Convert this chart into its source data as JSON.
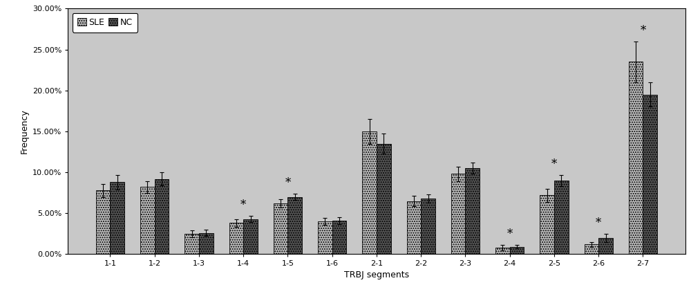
{
  "categories": [
    "1-1",
    "1-2",
    "1-3",
    "1-4",
    "1-5",
    "1-6",
    "2-1",
    "2-2",
    "2-3",
    "2-4",
    "2-5",
    "2-6",
    "2-7"
  ],
  "sle_values": [
    7.8,
    8.2,
    2.5,
    3.8,
    6.2,
    4.0,
    15.0,
    6.5,
    9.8,
    0.8,
    7.2,
    1.2,
    23.5
  ],
  "nc_values": [
    8.8,
    9.2,
    2.6,
    4.3,
    7.0,
    4.1,
    13.5,
    6.8,
    10.5,
    0.9,
    9.0,
    2.0,
    19.5
  ],
  "sle_err": [
    0.8,
    0.7,
    0.4,
    0.5,
    0.5,
    0.4,
    1.5,
    0.6,
    0.9,
    0.3,
    0.8,
    0.3,
    2.5
  ],
  "nc_err": [
    0.9,
    0.8,
    0.4,
    0.4,
    0.4,
    0.4,
    1.2,
    0.5,
    0.7,
    0.2,
    0.7,
    0.5,
    1.5
  ],
  "significant": [
    false,
    false,
    false,
    true,
    true,
    false,
    false,
    false,
    false,
    true,
    true,
    true,
    true
  ],
  "sle_color": "#bebebe",
  "nc_color": "#555555",
  "ylabel": "Frequency",
  "xlabel": "TRBJ segments",
  "ylim": [
    0,
    30
  ],
  "yticks": [
    0,
    5,
    10,
    15,
    20,
    25,
    30
  ],
  "ytick_labels": [
    "0.00%",
    "5.00%",
    "10.00%",
    "15.00%",
    "20.00%",
    "25.00%",
    "30.00%"
  ],
  "outer_bg": "#ffffff",
  "plot_bg": "#c8c8c8",
  "legend_labels": [
    "SLE",
    "NC"
  ],
  "bar_width": 0.32,
  "axis_fontsize": 9,
  "tick_fontsize": 8,
  "legend_fontsize": 9,
  "star_fontsize": 12
}
